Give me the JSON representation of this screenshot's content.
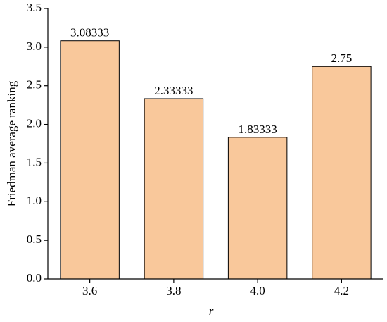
{
  "chart_data": {
    "type": "bar",
    "x_label": "r",
    "y_label": "Friedman average ranking",
    "categories": [
      "3.6",
      "3.8",
      "4.0",
      "4.2"
    ],
    "values": [
      3.08333,
      2.33333,
      1.83333,
      2.75
    ],
    "color": "#f9c89b",
    "ylim": [
      0,
      3.5
    ],
    "yticks": [
      {
        "value": 0,
        "label": "0.0"
      },
      0.5,
      {
        "value": 1,
        "label": "1.0"
      },
      1.5,
      {
        "value": 2,
        "label": "2.0"
      },
      2.5,
      {
        "value": 3,
        "label": "3.0"
      },
      3.5
    ]
  }
}
